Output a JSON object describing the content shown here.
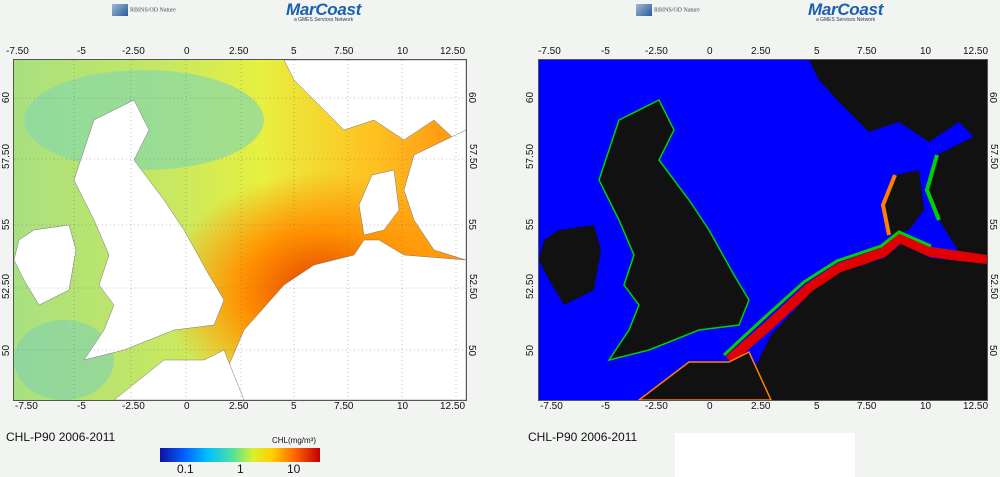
{
  "logos": {
    "small_text": "RBINS/OD Nature",
    "big_text": "MarCoast",
    "big_subtext": "a GMES Services Network"
  },
  "axes": {
    "x_ticks": [
      "-7.50",
      "-5",
      "-2.50",
      "0",
      "2.50",
      "5",
      "7.50",
      "10",
      "12.50"
    ],
    "y_ticks": [
      "60",
      "57.50",
      "55",
      "52.50",
      "50"
    ]
  },
  "left_map": {
    "caption": "CHL-P90 2006-2011",
    "colorbar": {
      "label": "CHL(mg/m³)",
      "ticks": [
        "0.1",
        "1",
        "10"
      ],
      "colors": [
        "#1010a0",
        "#0060ff",
        "#00c0ff",
        "#50e0a0",
        "#d8f030",
        "#ffd000",
        "#ff6000",
        "#c00000"
      ]
    },
    "land_color": "#ffffff",
    "sea_colors": {
      "offshore": "#c8e060",
      "open_ocean": "#7fd0a0",
      "coastal": "#ff8000",
      "high": "#c00000"
    }
  },
  "right_map": {
    "caption": "CHL-P90 2006-2011",
    "land_color": "#111111",
    "sea_colors": {
      "sea": "#0000ff",
      "band1": "#00d000",
      "band2": "#ff8000",
      "band3": "#e00000"
    }
  }
}
